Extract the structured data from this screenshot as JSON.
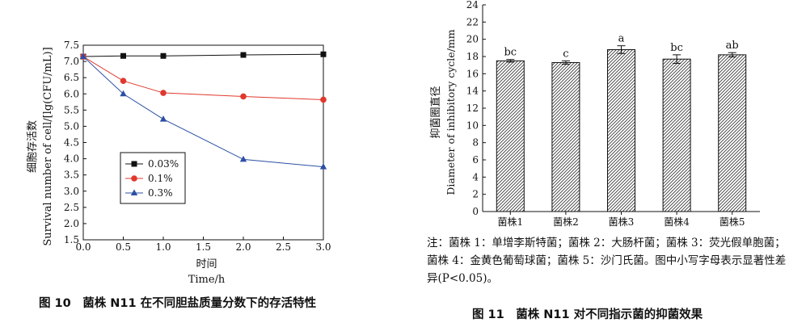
{
  "figures": [
    {
      "caption": "图 10　菌株 N11 在不同胆盐质量分数下的存活特性",
      "chart_data": {
        "type": "line",
        "xlabel_cn": "时间",
        "xlabel": "Time/h",
        "ylabel_cn": "细胞存活数",
        "ylabel": "Survival number of cell/[lg(CFU/mL)]",
        "xlim": [
          0,
          3.0
        ],
        "ylim": [
          1.5,
          7.5
        ],
        "xticks": [
          "0.0",
          "0.5",
          "1.0",
          "1.5",
          "2.0",
          "2.5",
          "3.0"
        ],
        "yticks": [
          "1.5",
          "2.0",
          "2.5",
          "3.0",
          "3.5",
          "4.0",
          "4.5",
          "5.0",
          "5.5",
          "6.0",
          "6.5",
          "7.0",
          "7.5"
        ],
        "legend_position": "lower-left",
        "grid": false,
        "x": [
          0,
          0.5,
          1,
          2,
          3
        ],
        "series": [
          {
            "name": "0.03%",
            "marker": "square",
            "color": "#111111",
            "values": [
              7.15,
              7.17,
              7.17,
              7.2,
              7.22
            ]
          },
          {
            "name": "0.1%",
            "marker": "circle",
            "color": "#e0382d",
            "values": [
              7.15,
              6.4,
              6.03,
              5.92,
              5.82
            ]
          },
          {
            "name": "0.3%",
            "marker": "triangle",
            "color": "#2c4fa5",
            "values": [
              7.15,
              6.0,
              5.22,
              3.98,
              3.75
            ]
          }
        ]
      }
    },
    {
      "caption": "图 11　菌株 N11 对不同指示菌的抑菌效果",
      "note": "注：菌株 1：单增李斯特菌；菌株 2：大肠杆菌；菌株 3：荧光假单胞菌；菌株 4：金黄色葡萄球菌；菌株 5：沙门氏菌。图中小写字母表示显著性差异(P<0.05)。",
      "chart_data": {
        "type": "bar",
        "ylabel_cn": "抑菌圈直径",
        "ylabel": "Diameter of inhibitory cycle/mm",
        "ylim": [
          0,
          24
        ],
        "yticks": [
          "0",
          "2",
          "4",
          "6",
          "8",
          "10",
          "12",
          "14",
          "16",
          "18",
          "20",
          "22",
          "24"
        ],
        "categories": [
          "菌株1",
          "菌株2",
          "菌株3",
          "菌株4",
          "菌株5"
        ],
        "values": [
          17.5,
          17.3,
          18.8,
          17.7,
          18.2
        ],
        "errors": [
          0.15,
          0.2,
          0.45,
          0.5,
          0.25
        ],
        "significance_labels": [
          "bc",
          "c",
          "a",
          "bc",
          "ab"
        ],
        "bar_fill": "hatched"
      }
    }
  ]
}
